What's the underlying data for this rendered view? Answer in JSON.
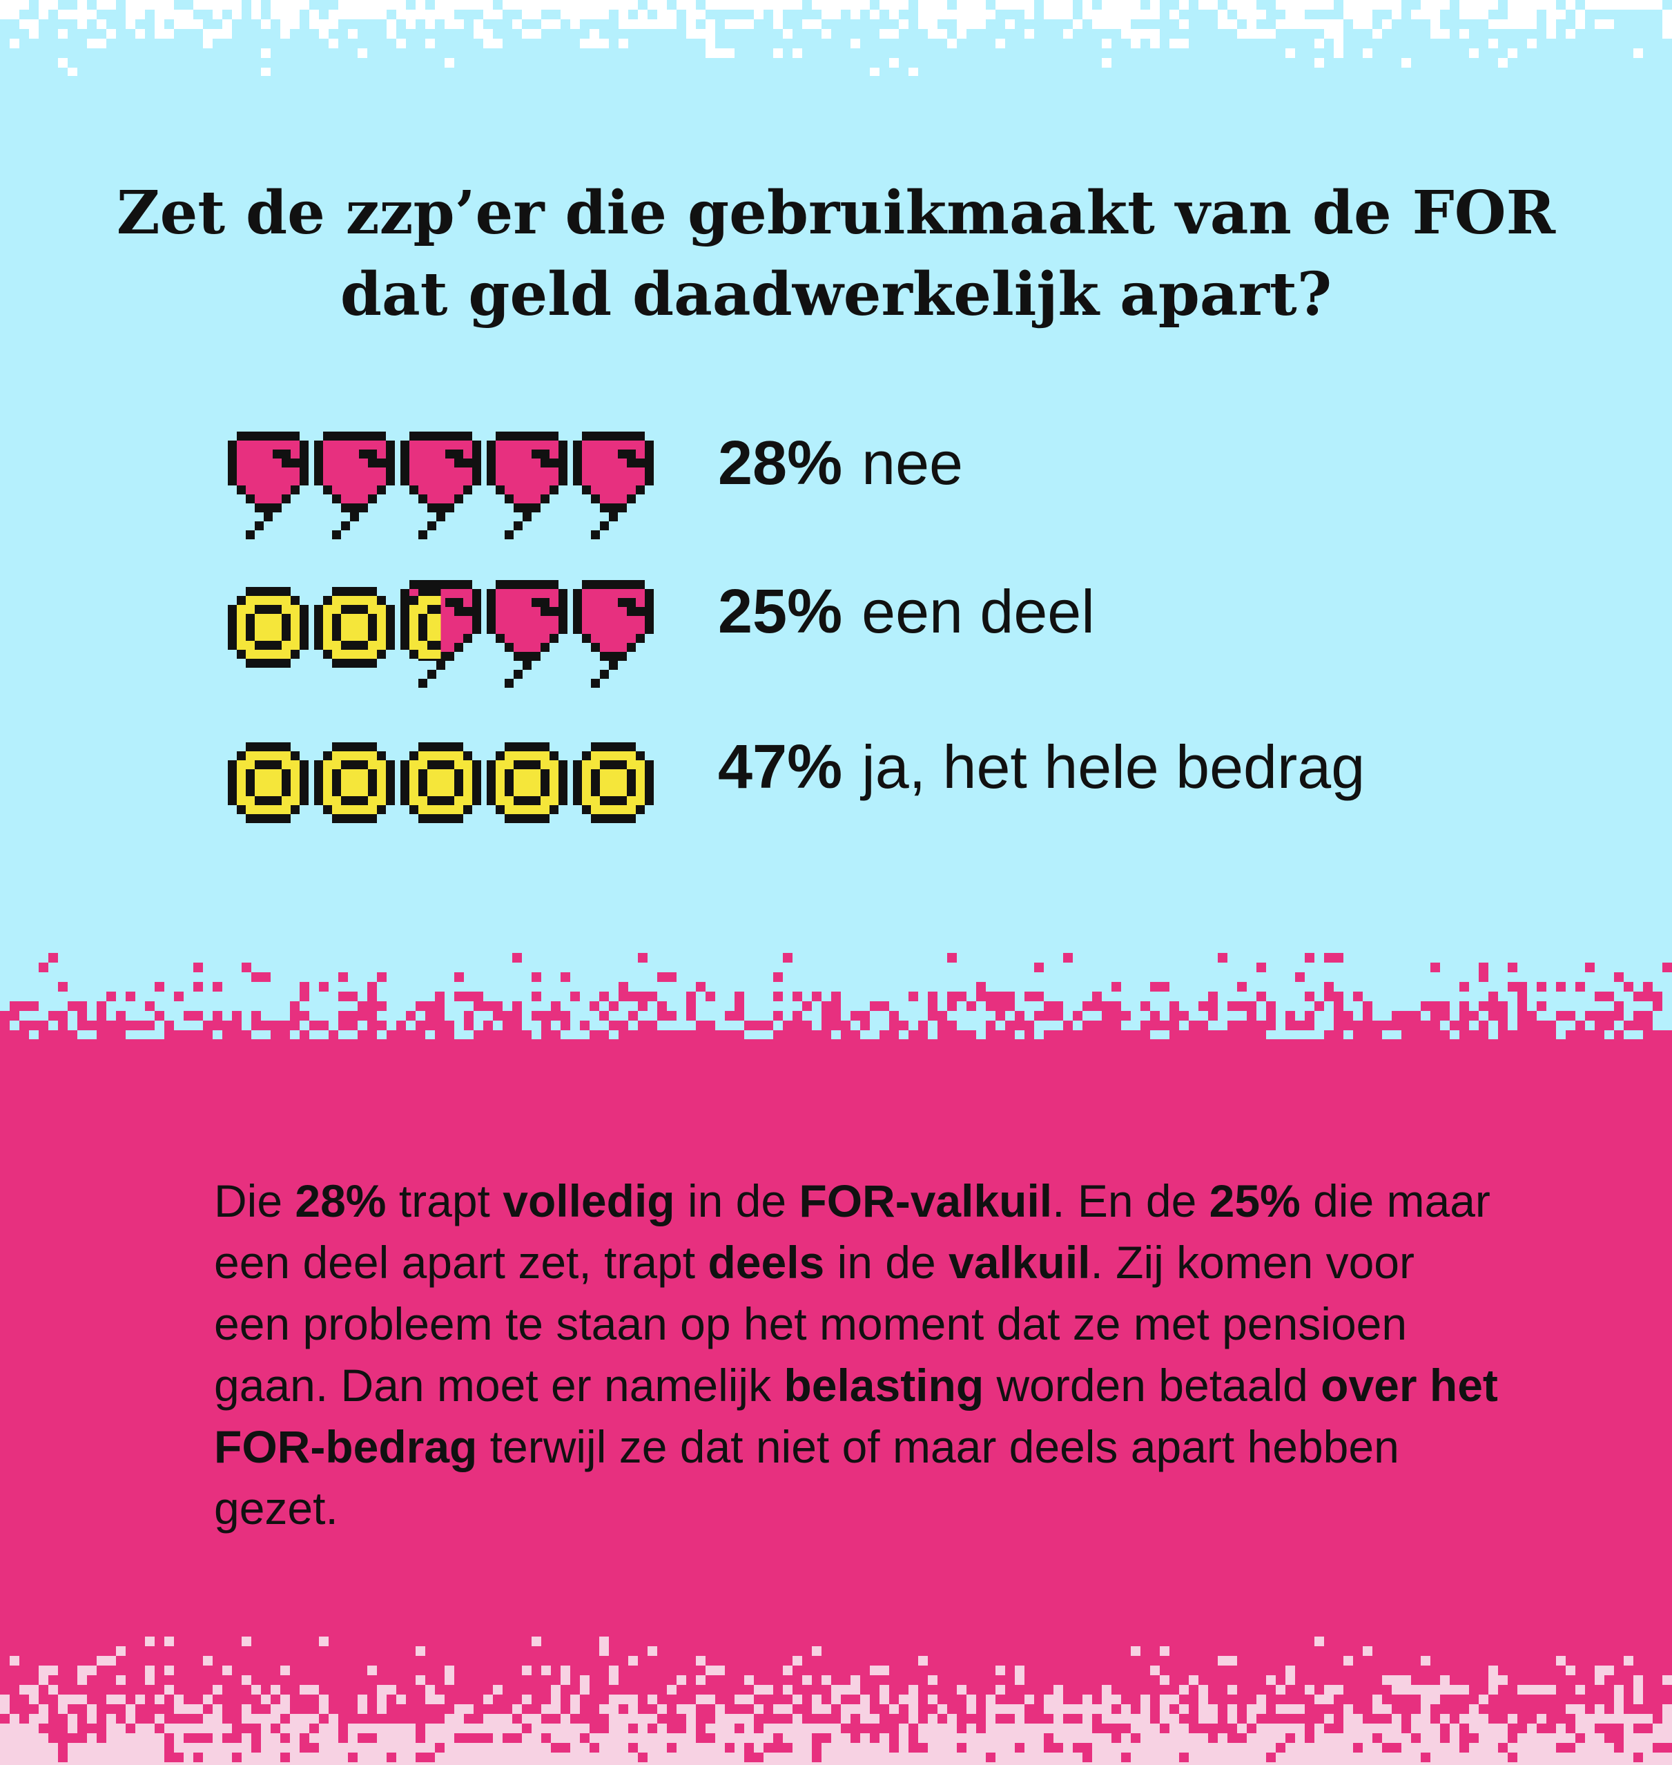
{
  "headline": {
    "line1": "Zet de zzp’er die gebruikmaakt van de FOR",
    "line2": "dat geld daadwerkelijk apart?"
  },
  "chart_data": {
    "type": "pictogram",
    "icons_per_row": 5,
    "title": "Zet de zzp’er die gebruikmaakt van de FOR dat geld daadwerkelijk apart?",
    "categories": [
      "nee",
      "een deel",
      "ja, het hele bedrag"
    ],
    "values": [
      28,
      25,
      47
    ],
    "unit": "%",
    "rows": [
      {
        "value": 28,
        "pct_label": "28%",
        "label": "nee",
        "coins": 0,
        "split": false
      },
      {
        "value": 25,
        "pct_label": "25%",
        "label": "een deel",
        "coins": 2,
        "split": true
      },
      {
        "value": 47,
        "pct_label": "47%",
        "label": "ja, het hele bedrag",
        "coins": 5,
        "split": false
      }
    ]
  },
  "icons": {
    "balloon": "pink-balloon-icon",
    "coin": "yellow-coin-icon",
    "half": "half-coin-half-balloon-icon"
  },
  "colors": {
    "sky": "#b5f0fd",
    "pink": "#e7307f",
    "light_pink": "#f7d2e3",
    "coin_yellow": "#f5e63a",
    "ink": "#111111",
    "pixel_white": "#ffffff"
  },
  "body": {
    "segments": [
      {
        "text": "Die ",
        "bold": false
      },
      {
        "text": "28%",
        "bold": true
      },
      {
        "text": " trapt ",
        "bold": false
      },
      {
        "text": "volledig",
        "bold": true
      },
      {
        "text": " in de ",
        "bold": false
      },
      {
        "text": "FOR-valkuil",
        "bold": true
      },
      {
        "text": ". En de ",
        "bold": false
      },
      {
        "text": "25%",
        "bold": true
      },
      {
        "text": " die maar een deel apart zet, trapt ",
        "bold": false
      },
      {
        "text": "deels",
        "bold": true
      },
      {
        "text": " in de ",
        "bold": false
      },
      {
        "text": "valkuil",
        "bold": true
      },
      {
        "text": ". Zij komen voor een probleem te staan op het moment dat ze met pensioen gaan. Dan moet er namelijk ",
        "bold": false
      },
      {
        "text": "belasting",
        "bold": true
      },
      {
        "text": " worden betaald ",
        "bold": false
      },
      {
        "text": "over het FOR-bedrag",
        "bold": true
      },
      {
        "text": " terwijl ze dat niet of maar deels apart hebben gezet.",
        "bold": false
      }
    ]
  }
}
